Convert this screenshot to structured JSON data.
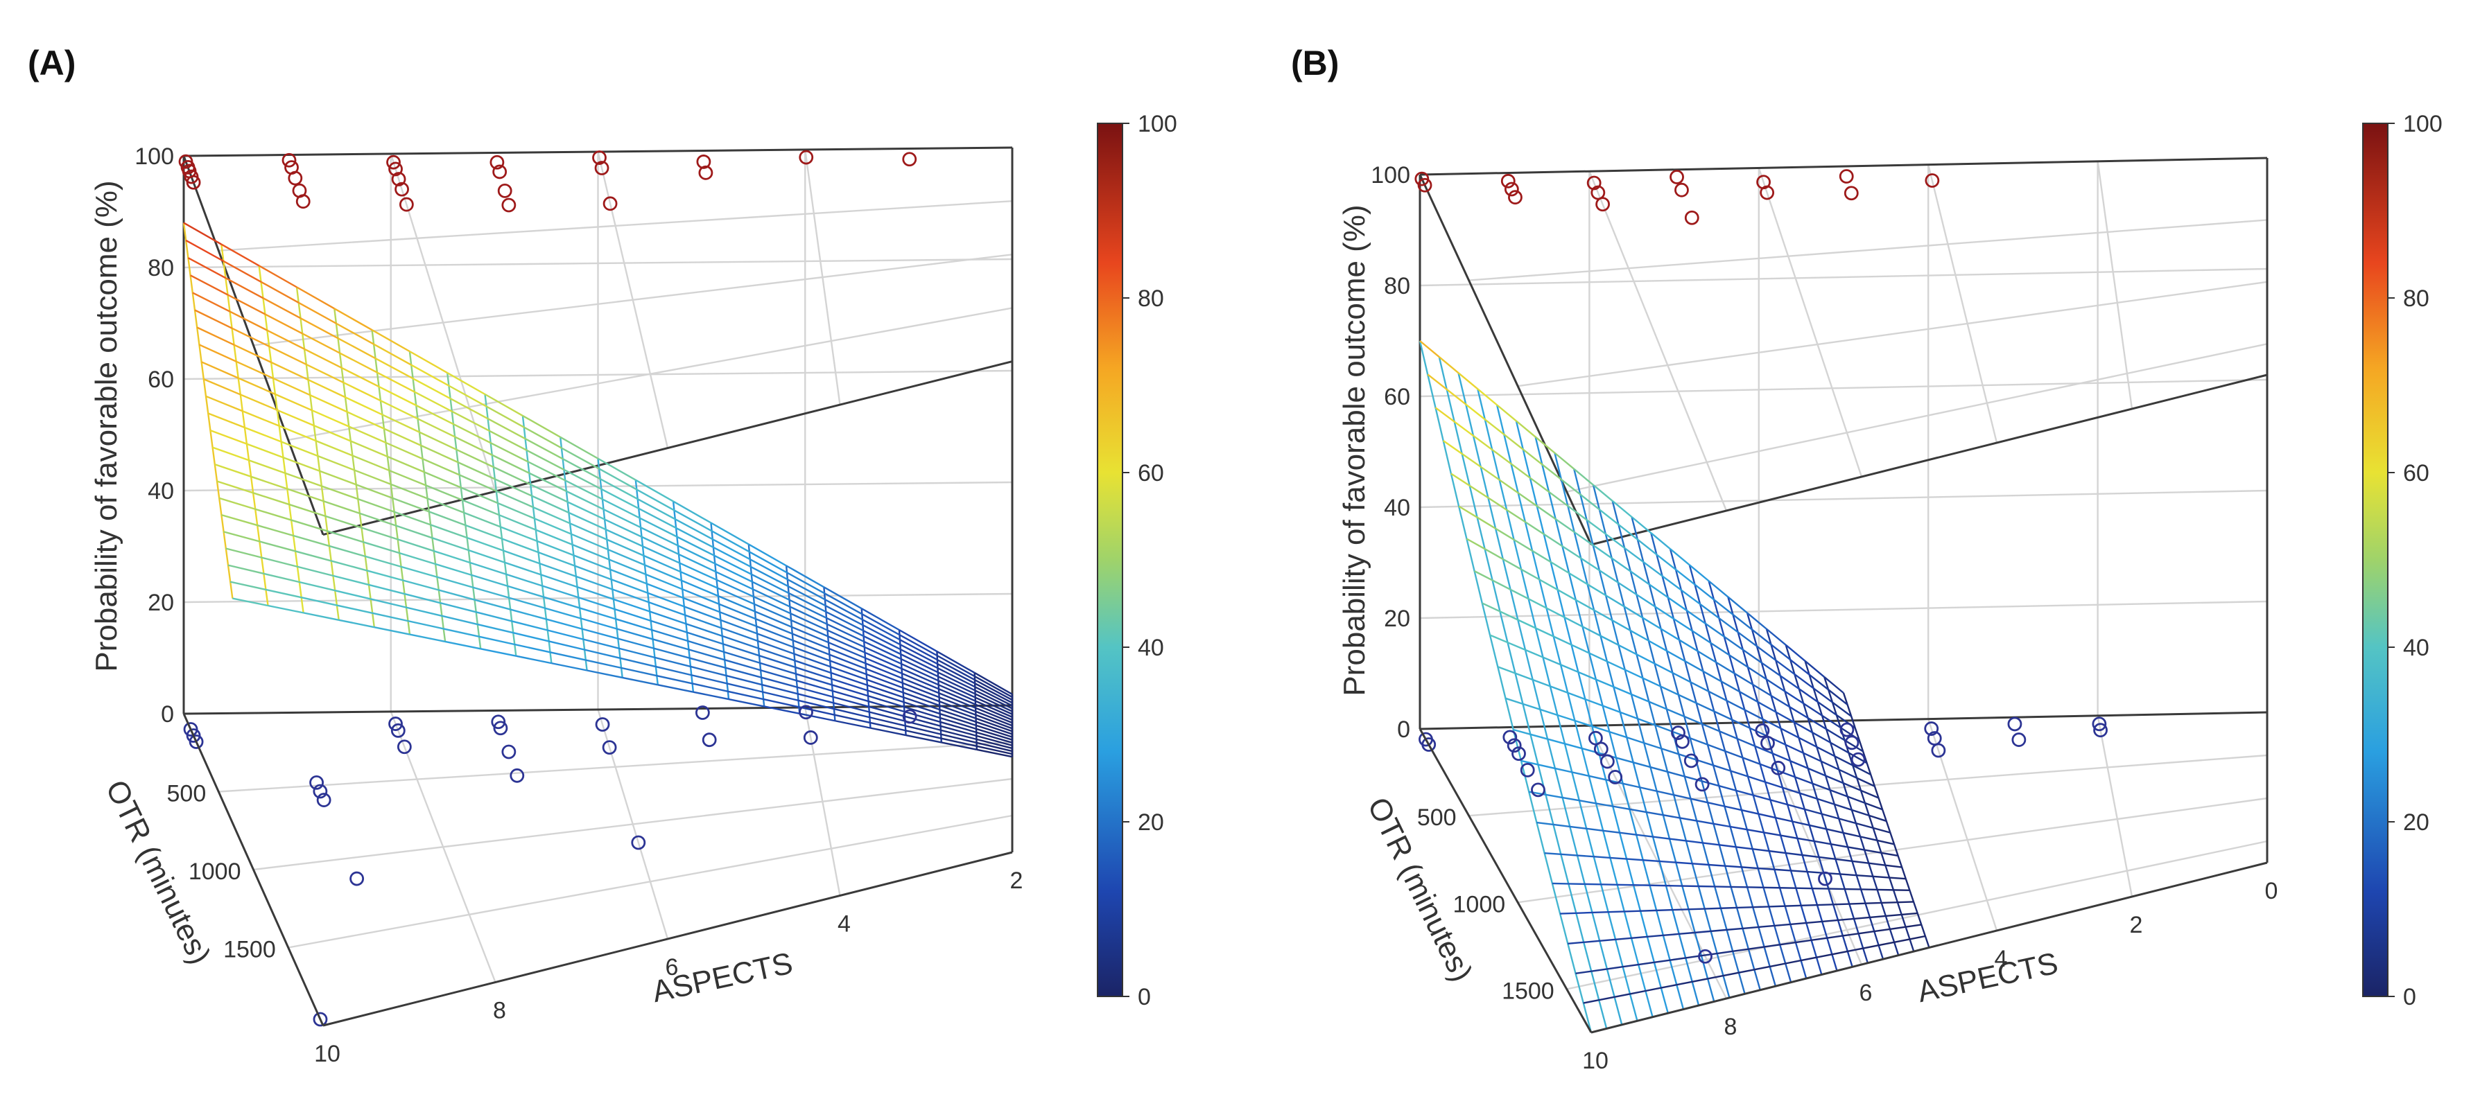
{
  "chart_data": [
    {
      "panel": "(A)",
      "type": "surface3d",
      "zlabel": "Probability of favorable outcome (%)",
      "xlabel": "ASPECTS",
      "ylabel": "OTR (minutes)",
      "z_ticks": [
        "0",
        "20",
        "40",
        "60",
        "80",
        "100"
      ],
      "aspects_ticks": [
        "2",
        "4",
        "6",
        "8",
        "10"
      ],
      "otr_ticks": [
        "500",
        "1000",
        "1500"
      ],
      "colorbar_ticks": [
        "0",
        "20",
        "40",
        "60",
        "80",
        "100"
      ],
      "surface": {
        "aspects_range": [
          2,
          10
        ],
        "otr_range": [
          0,
          700
        ],
        "z": {
          "a10_t0": 88,
          "a2_t0": 2,
          "a10_t700": 42,
          "a2_t700": 0
        }
      },
      "points_favorable": [
        {
          "aspects": 10,
          "otr": 30,
          "z": 100
        },
        {
          "aspects": 10,
          "otr": 60,
          "z": 100
        },
        {
          "aspects": 10,
          "otr": 80,
          "z": 100
        },
        {
          "aspects": 10,
          "otr": 110,
          "z": 100
        },
        {
          "aspects": 10,
          "otr": 140,
          "z": 100
        },
        {
          "aspects": 9,
          "otr": 30,
          "z": 100
        },
        {
          "aspects": 9,
          "otr": 70,
          "z": 100
        },
        {
          "aspects": 9,
          "otr": 130,
          "z": 100
        },
        {
          "aspects": 9,
          "otr": 200,
          "z": 100
        },
        {
          "aspects": 9,
          "otr": 260,
          "z": 100
        },
        {
          "aspects": 8,
          "otr": 50,
          "z": 100
        },
        {
          "aspects": 8,
          "otr": 90,
          "z": 100
        },
        {
          "aspects": 8,
          "otr": 150,
          "z": 100
        },
        {
          "aspects": 8,
          "otr": 210,
          "z": 100
        },
        {
          "aspects": 8,
          "otr": 300,
          "z": 100
        },
        {
          "aspects": 7,
          "otr": 60,
          "z": 100
        },
        {
          "aspects": 7,
          "otr": 120,
          "z": 100
        },
        {
          "aspects": 7,
          "otr": 240,
          "z": 100
        },
        {
          "aspects": 7,
          "otr": 330,
          "z": 100
        },
        {
          "aspects": 6,
          "otr": 40,
          "z": 100
        },
        {
          "aspects": 6,
          "otr": 110,
          "z": 100
        },
        {
          "aspects": 6,
          "otr": 350,
          "z": 100
        },
        {
          "aspects": 5,
          "otr": 80,
          "z": 100
        },
        {
          "aspects": 5,
          "otr": 160,
          "z": 100
        },
        {
          "aspects": 4,
          "otr": 60,
          "z": 100
        },
        {
          "aspects": 3,
          "otr": 90,
          "z": 100
        }
      ],
      "points_unfavorable": [
        {
          "aspects": 10,
          "otr": 100,
          "z": 0
        },
        {
          "aspects": 10,
          "otr": 140,
          "z": 0
        },
        {
          "aspects": 10,
          "otr": 180,
          "z": 0
        },
        {
          "aspects": 10,
          "otr": 1960,
          "z": 0
        },
        {
          "aspects": 9,
          "otr": 480,
          "z": 0
        },
        {
          "aspects": 9,
          "otr": 540,
          "z": 0
        },
        {
          "aspects": 9,
          "otr": 600,
          "z": 0
        },
        {
          "aspects": 9,
          "otr": 1140,
          "z": 0
        },
        {
          "aspects": 8,
          "otr": 90,
          "z": 0
        },
        {
          "aspects": 8,
          "otr": 140,
          "z": 0
        },
        {
          "aspects": 8,
          "otr": 260,
          "z": 0
        },
        {
          "aspects": 7,
          "otr": 90,
          "z": 0
        },
        {
          "aspects": 7,
          "otr": 140,
          "z": 0
        },
        {
          "aspects": 7,
          "otr": 330,
          "z": 0
        },
        {
          "aspects": 7,
          "otr": 520,
          "z": 0
        },
        {
          "aspects": 6,
          "otr": 130,
          "z": 0
        },
        {
          "aspects": 6,
          "otr": 330,
          "z": 0
        },
        {
          "aspects": 6,
          "otr": 1160,
          "z": 0
        },
        {
          "aspects": 5,
          "otr": 40,
          "z": 0
        },
        {
          "aspects": 5,
          "otr": 300,
          "z": 0
        },
        {
          "aspects": 4,
          "otr": 50,
          "z": 0
        },
        {
          "aspects": 4,
          "otr": 320,
          "z": 0
        },
        {
          "aspects": 3,
          "otr": 120,
          "z": 0
        }
      ]
    },
    {
      "panel": "(B)",
      "type": "surface3d",
      "zlabel": "Probability of favorable outcome (%)",
      "xlabel": "ASPECTS",
      "ylabel": "OTR (minutes)",
      "z_ticks": [
        "0",
        "20",
        "40",
        "60",
        "80",
        "100"
      ],
      "aspects_ticks": [
        "0",
        "2",
        "4",
        "6",
        "8",
        "10"
      ],
      "otr_ticks": [
        "500",
        "1000",
        "1500"
      ],
      "colorbar_ticks": [
        "0",
        "20",
        "40",
        "60",
        "80",
        "100"
      ],
      "surface": {
        "aspects_range": [
          5,
          10
        ],
        "otr_range": [
          0,
          1750
        ],
        "z": {
          "a10_t0": 70,
          "a5_t0": 5,
          "a10_t1750": 0,
          "a5_t1750": 0
        }
      },
      "points_favorable": [
        {
          "aspects": 10,
          "otr": 20,
          "z": 100
        },
        {
          "aspects": 10,
          "otr": 50,
          "z": 100
        },
        {
          "aspects": 9,
          "otr": 40,
          "z": 100
        },
        {
          "aspects": 9,
          "otr": 80,
          "z": 100
        },
        {
          "aspects": 9,
          "otr": 120,
          "z": 100
        },
        {
          "aspects": 8,
          "otr": 60,
          "z": 100
        },
        {
          "aspects": 8,
          "otr": 110,
          "z": 100
        },
        {
          "aspects": 8,
          "otr": 170,
          "z": 100
        },
        {
          "aspects": 7,
          "otr": 40,
          "z": 100
        },
        {
          "aspects": 7,
          "otr": 110,
          "z": 100
        },
        {
          "aspects": 7,
          "otr": 260,
          "z": 100
        },
        {
          "aspects": 6,
          "otr": 80,
          "z": 100
        },
        {
          "aspects": 6,
          "otr": 140,
          "z": 100
        },
        {
          "aspects": 5,
          "otr": 60,
          "z": 100
        },
        {
          "aspects": 5,
          "otr": 160,
          "z": 100
        },
        {
          "aspects": 4,
          "otr": 100,
          "z": 100
        }
      ],
      "points_unfavorable": [
        {
          "aspects": 10,
          "otr": 60,
          "z": 0
        },
        {
          "aspects": 10,
          "otr": 90,
          "z": 0
        },
        {
          "aspects": 9,
          "otr": 60,
          "z": 0
        },
        {
          "aspects": 9,
          "otr": 110,
          "z": 0
        },
        {
          "aspects": 9,
          "otr": 160,
          "z": 0
        },
        {
          "aspects": 9,
          "otr": 260,
          "z": 0
        },
        {
          "aspects": 9,
          "otr": 380,
          "z": 0
        },
        {
          "aspects": 8,
          "otr": 80,
          "z": 0
        },
        {
          "aspects": 8,
          "otr": 150,
          "z": 0
        },
        {
          "aspects": 8,
          "otr": 230,
          "z": 0
        },
        {
          "aspects": 8,
          "otr": 330,
          "z": 0
        },
        {
          "aspects": 8,
          "otr": 1480,
          "z": 0
        },
        {
          "aspects": 7,
          "otr": 60,
          "z": 0
        },
        {
          "aspects": 7,
          "otr": 120,
          "z": 0
        },
        {
          "aspects": 7,
          "otr": 250,
          "z": 0
        },
        {
          "aspects": 7,
          "otr": 410,
          "z": 0
        },
        {
          "aspects": 6,
          "otr": 60,
          "z": 0
        },
        {
          "aspects": 6,
          "otr": 150,
          "z": 0
        },
        {
          "aspects": 6,
          "otr": 330,
          "z": 0
        },
        {
          "aspects": 6,
          "otr": 1130,
          "z": 0
        },
        {
          "aspects": 5,
          "otr": 70,
          "z": 0
        },
        {
          "aspects": 5,
          "otr": 170,
          "z": 0
        },
        {
          "aspects": 5,
          "otr": 300,
          "z": 0
        },
        {
          "aspects": 4,
          "otr": 80,
          "z": 0
        },
        {
          "aspects": 4,
          "otr": 160,
          "z": 0
        },
        {
          "aspects": 4,
          "otr": 260,
          "z": 0
        },
        {
          "aspects": 3,
          "otr": 60,
          "z": 0
        },
        {
          "aspects": 3,
          "otr": 200,
          "z": 0
        },
        {
          "aspects": 2,
          "otr": 80,
          "z": 0
        },
        {
          "aspects": 2,
          "otr": 140,
          "z": 0
        }
      ]
    }
  ],
  "colors": {
    "favorable_marker": "#9e1a1a",
    "unfavorable_marker": "#2c3494",
    "box_line": "#3a3a3a",
    "grid_line": "#d4d4d4"
  }
}
